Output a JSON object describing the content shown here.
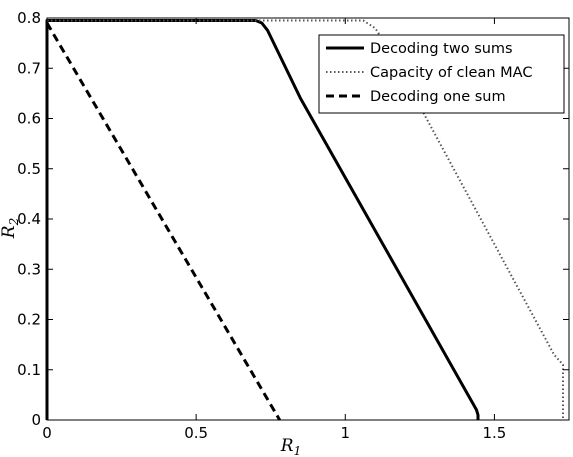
{
  "chart_data": {
    "type": "line",
    "title": "",
    "xlabel": "R",
    "xlabel_sub": "1",
    "ylabel": "R",
    "ylabel_sub": "2",
    "xlim": [
      0,
      1.75
    ],
    "ylim": [
      0,
      0.8
    ],
    "xticks": [
      0,
      0.5,
      1,
      1.5
    ],
    "xtick_labels": [
      "0",
      "0.5",
      "1",
      "1.5"
    ],
    "yticks": [
      0,
      0.1,
      0.2,
      0.3,
      0.4,
      0.5,
      0.6,
      0.7,
      0.8
    ],
    "ytick_labels": [
      "0",
      "0.1",
      "0.2",
      "0.3",
      "0.4",
      "0.5",
      "0.6",
      "0.7",
      "0.8"
    ],
    "grid": false,
    "legend_position": "top-right",
    "series": [
      {
        "name": "Decoding two sums",
        "style": "solid",
        "color": "#000000",
        "x": [
          0,
          0,
          0.7,
          0.72,
          0.74,
          0.85,
          1.44,
          1.445,
          1.445
        ],
        "y": [
          0,
          0.795,
          0.795,
          0.79,
          0.775,
          0.64,
          0.02,
          0.01,
          0
        ]
      },
      {
        "name": "Capacity of clean MAC",
        "style": "dotted",
        "color": "#555555",
        "x": [
          0,
          1.06,
          1.1,
          1.145,
          1.7,
          1.73,
          1.73
        ],
        "y": [
          0.795,
          0.795,
          0.78,
          0.74,
          0.13,
          0.11,
          0
        ]
      },
      {
        "name": "Decoding one sum",
        "style": "dashed",
        "color": "#000000",
        "x": [
          0,
          0.78
        ],
        "y": [
          0.79,
          0
        ]
      }
    ]
  }
}
